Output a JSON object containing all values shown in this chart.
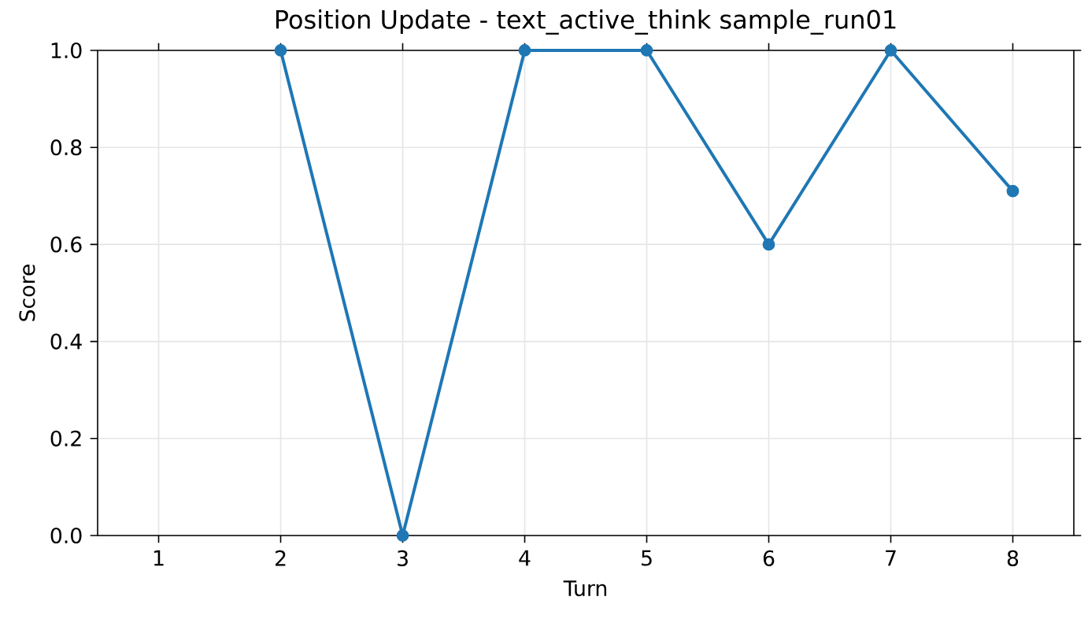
{
  "chart_data": {
    "type": "line",
    "title": "Position Update - text_active_think sample_run01",
    "xlabel": "Turn",
    "ylabel": "Score",
    "x": [
      2,
      3,
      4,
      5,
      6,
      7,
      8
    ],
    "series": [
      {
        "color": "#1f77b4",
        "values": [
          1,
          0,
          1,
          1,
          0.6,
          1,
          0.71
        ]
      }
    ],
    "xlim": [
      0.5,
      8.5
    ],
    "xticks": [
      1,
      2,
      3,
      4,
      5,
      6,
      7,
      8
    ],
    "ylim": [
      0,
      1
    ],
    "yticks": [
      {
        "value": 0,
        "label": "0.0"
      },
      {
        "value": 0.2,
        "label": "0.2"
      },
      {
        "value": 0.4,
        "label": "0.4"
      },
      {
        "value": 0.6,
        "label": "0.6"
      },
      {
        "value": 0.8,
        "label": "0.8"
      },
      {
        "value": 1,
        "label": "1.0"
      }
    ],
    "grid": true,
    "marker": "circle",
    "line_style": "solid"
  }
}
